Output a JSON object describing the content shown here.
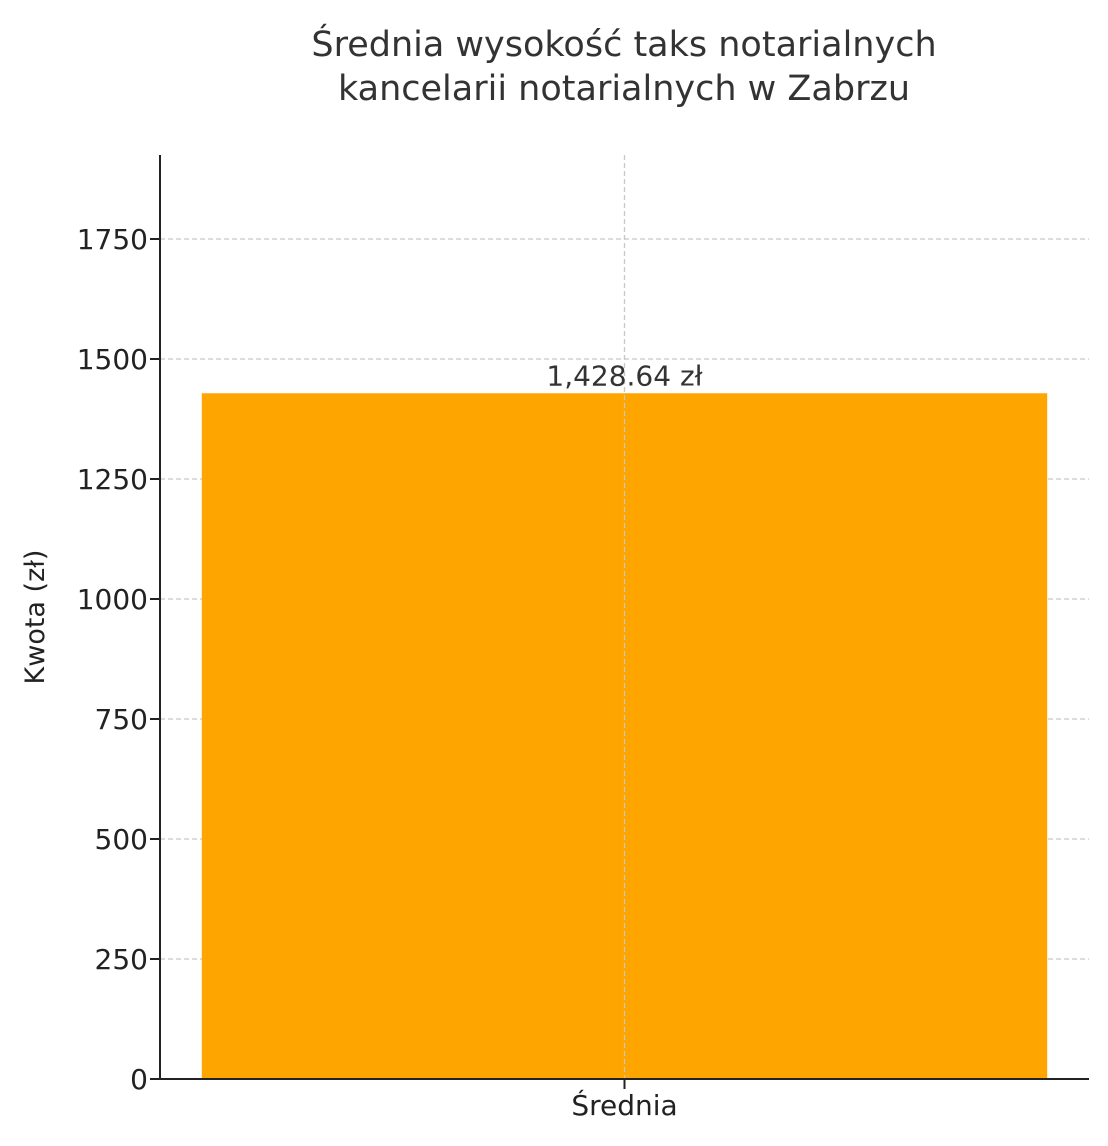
{
  "chart_data": {
    "type": "bar",
    "title_lines": [
      "Średnia wysokość taks notarialnych",
      "kancelarii notarialnych w Zabrzu"
    ],
    "xlabel": "",
    "ylabel": "Kwota (zł)",
    "categories": [
      "Średnia"
    ],
    "values": [
      1428.64
    ],
    "data_labels": [
      "1,428.64 zł"
    ],
    "ylim": [
      0,
      1925
    ],
    "yticks": [
      0,
      250,
      500,
      750,
      1000,
      1250,
      1500,
      1750
    ],
    "grid": true,
    "bar_color": "#FFA500"
  }
}
